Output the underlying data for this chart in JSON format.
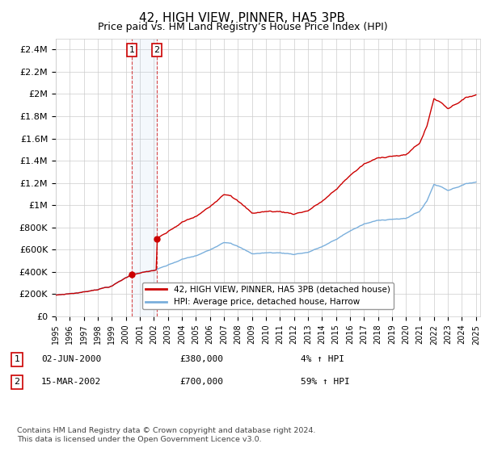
{
  "title": "42, HIGH VIEW, PINNER, HA5 3PB",
  "subtitle": "Price paid vs. HM Land Registry’s House Price Index (HPI)",
  "ylabel_ticks": [
    "£0",
    "£200K",
    "£400K",
    "£600K",
    "£800K",
    "£1M",
    "£1.2M",
    "£1.4M",
    "£1.6M",
    "£1.8M",
    "£2M",
    "£2.2M",
    "£2.4M"
  ],
  "ytick_values": [
    0,
    200000,
    400000,
    600000,
    800000,
    1000000,
    1200000,
    1400000,
    1600000,
    1800000,
    2000000,
    2200000,
    2400000
  ],
  "ylim": [
    0,
    2500000
  ],
  "year_start": 1995,
  "year_end": 2025,
  "t1_year": 2000.417,
  "t2_year": 2002.208,
  "t1_price": 380000,
  "t2_price": 700000,
  "transaction1": {
    "display": "02-JUN-2000",
    "price_display": "£380,000",
    "pct": "4%"
  },
  "transaction2": {
    "display": "15-MAR-2002",
    "price_display": "£700,000",
    "pct": "59%"
  },
  "red_line_color": "#cc0000",
  "blue_line_color": "#7aafdc",
  "legend_label1": "42, HIGH VIEW, PINNER, HA5 3PB (detached house)",
  "legend_label2": "HPI: Average price, detached house, Harrow",
  "footnote": "Contains HM Land Registry data © Crown copyright and database right 2024.\nThis data is licensed under the Open Government Licence v3.0.",
  "background_color": "#ffffff",
  "grid_color": "#cccccc"
}
